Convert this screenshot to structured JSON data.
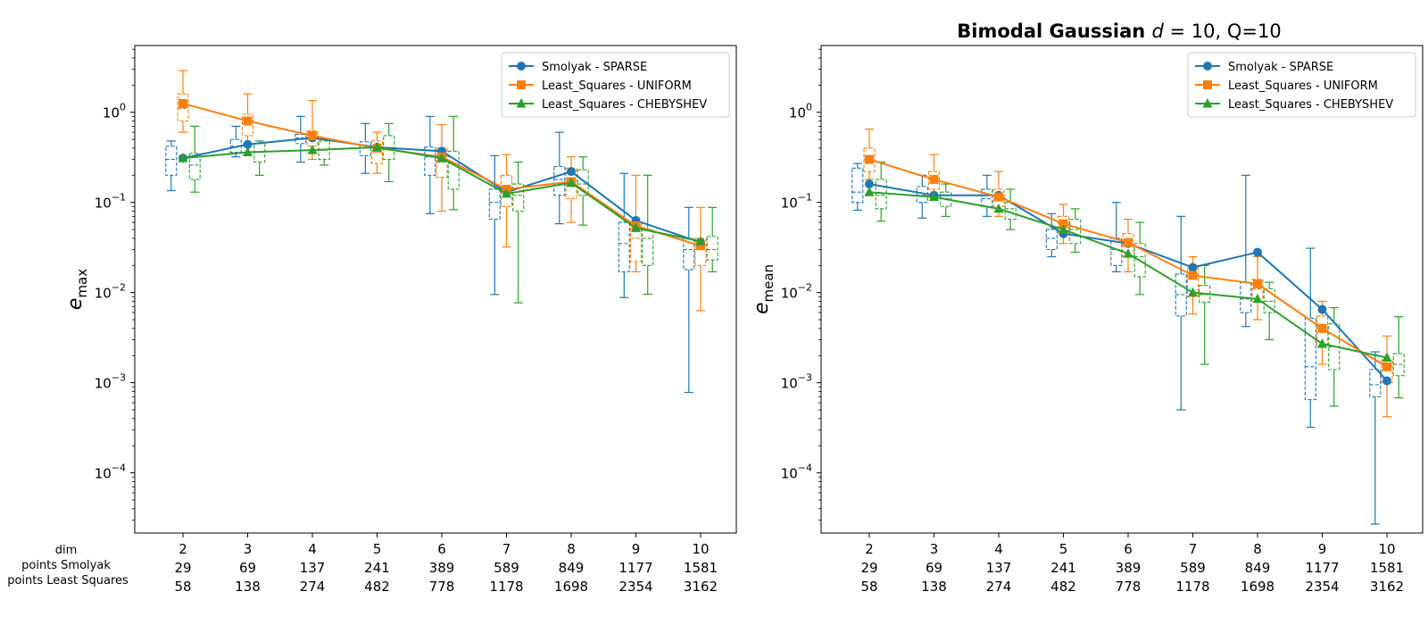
{
  "figure": {
    "title_parts": [
      "Bimodal Gaussian ",
      "d",
      " = 10, Q=10"
    ],
    "row_labels": [
      "dim",
      "points Smolyak",
      "points Least Squares"
    ],
    "x_dim": [
      2,
      3,
      4,
      5,
      6,
      7,
      8,
      9,
      10
    ],
    "x_points_smolyak": [
      29,
      69,
      137,
      241,
      389,
      589,
      849,
      1177,
      1581
    ],
    "x_points_least_squares": [
      58,
      138,
      274,
      482,
      778,
      1178,
      1698,
      2354,
      3162
    ],
    "colors": {
      "smolyak": "#1f77b4",
      "uniform": "#ff7f0e",
      "chebyshev": "#2ca02c"
    }
  },
  "chart_data": [
    {
      "type": "line",
      "scale": "log",
      "ylabel_base": "e",
      "ylabel_sub": "max",
      "ylim": [
        2.15e-05,
        5.5
      ],
      "y_ticks": [
        1,
        0.1,
        0.01,
        0.001,
        0.0001
      ],
      "y_tick_labels": [
        [
          "10",
          "0"
        ],
        [
          "10",
          "−1"
        ],
        [
          "10",
          "−2"
        ],
        [
          "10",
          "−3"
        ],
        [
          "10",
          "−4"
        ]
      ],
      "legend_position": "top-right",
      "x": [
        2,
        3,
        4,
        5,
        6,
        7,
        8,
        9,
        10
      ],
      "series": [
        {
          "name": "Smolyak - SPARSE",
          "marker": "circle",
          "color": "#1f77b4",
          "values": [
            0.31,
            0.44,
            0.52,
            0.41,
            0.37,
            0.13,
            0.22,
            0.063,
            0.036
          ],
          "box": [
            [
              0.135,
              0.2,
              0.3,
              0.42,
              0.48
            ],
            [
              0.32,
              0.36,
              0.42,
              0.5,
              0.7
            ],
            [
              0.28,
              0.45,
              0.52,
              0.57,
              0.9
            ],
            [
              0.21,
              0.33,
              0.4,
              0.47,
              0.75
            ],
            [
              0.075,
              0.2,
              0.32,
              0.41,
              0.9
            ],
            [
              0.0095,
              0.065,
              0.1,
              0.14,
              0.33
            ],
            [
              0.058,
              0.12,
              0.18,
              0.25,
              0.6
            ],
            [
              0.0088,
              0.017,
              0.035,
              0.06,
              0.21
            ],
            [
              0.00078,
              0.018,
              0.03,
              0.04,
              0.088
            ]
          ]
        },
        {
          "name": "Least_Squares - UNIFORM",
          "marker": "square",
          "color": "#ff7f0e",
          "values": [
            1.25,
            0.8,
            0.55,
            0.4,
            0.32,
            0.14,
            0.17,
            0.055,
            0.033
          ],
          "box": [
            [
              0.6,
              0.8,
              1.1,
              1.6,
              2.9
            ],
            [
              0.45,
              0.55,
              0.75,
              0.95,
              1.6
            ],
            [
              0.3,
              0.42,
              0.52,
              0.62,
              1.35
            ],
            [
              0.21,
              0.27,
              0.38,
              0.48,
              0.6
            ],
            [
              0.08,
              0.19,
              0.28,
              0.4,
              0.73
            ],
            [
              0.032,
              0.09,
              0.14,
              0.2,
              0.34
            ],
            [
              0.06,
              0.11,
              0.15,
              0.24,
              0.32
            ],
            [
              0.017,
              0.022,
              0.04,
              0.06,
              0.2
            ],
            [
              0.0063,
              0.02,
              0.03,
              0.04,
              0.088
            ]
          ]
        },
        {
          "name": "Least_Squares - CHEBYSHEV",
          "marker": "triangle",
          "color": "#2ca02c",
          "values": [
            0.31,
            0.36,
            0.38,
            0.41,
            0.31,
            0.125,
            0.165,
            0.052,
            0.037
          ],
          "box": [
            [
              0.13,
              0.18,
              0.26,
              0.35,
              0.7
            ],
            [
              0.2,
              0.28,
              0.36,
              0.45,
              0.48
            ],
            [
              0.26,
              0.3,
              0.38,
              0.48,
              0.5
            ],
            [
              0.17,
              0.3,
              0.4,
              0.55,
              0.75
            ],
            [
              0.083,
              0.14,
              0.27,
              0.37,
              0.9
            ],
            [
              0.0077,
              0.08,
              0.12,
              0.16,
              0.28
            ],
            [
              0.056,
              0.12,
              0.16,
              0.23,
              0.32
            ],
            [
              0.0096,
              0.02,
              0.04,
              0.05,
              0.2
            ],
            [
              0.017,
              0.023,
              0.03,
              0.042,
              0.088
            ]
          ]
        }
      ]
    },
    {
      "type": "line",
      "scale": "log",
      "ylabel_base": "e",
      "ylabel_sub": "mean",
      "ylim": [
        2.15e-05,
        5.5
      ],
      "y_ticks": [
        1,
        0.1,
        0.01,
        0.001,
        0.0001
      ],
      "y_tick_labels": [
        [
          "10",
          "0"
        ],
        [
          "10",
          "−1"
        ],
        [
          "10",
          "−2"
        ],
        [
          "10",
          "−3"
        ],
        [
          "10",
          "−4"
        ]
      ],
      "legend_position": "top-right",
      "x": [
        2,
        3,
        4,
        5,
        6,
        7,
        8,
        9,
        10
      ],
      "series": [
        {
          "name": "Smolyak - SPARSE",
          "marker": "circle",
          "color": "#1f77b4",
          "values": [
            0.16,
            0.12,
            0.12,
            0.045,
            0.035,
            0.019,
            0.028,
            0.0065,
            0.00105
          ],
          "box": [
            [
              0.082,
              0.1,
              0.13,
              0.24,
              0.27
            ],
            [
              0.067,
              0.1,
              0.12,
              0.15,
              0.2
            ],
            [
              0.07,
              0.09,
              0.11,
              0.14,
              0.2
            ],
            [
              0.025,
              0.03,
              0.04,
              0.05,
              0.075
            ],
            [
              0.017,
              0.02,
              0.03,
              0.04,
              0.1
            ],
            [
              0.0005,
              0.0055,
              0.0095,
              0.016,
              0.07
            ],
            [
              0.0042,
              0.006,
              0.0085,
              0.013,
              0.2
            ],
            [
              0.00032,
              0.00065,
              0.0015,
              0.0052,
              0.031
            ],
            [
              2.7e-05,
              0.0007,
              0.00095,
              0.0014,
              0.0022
            ]
          ]
        },
        {
          "name": "Least_Squares - UNIFORM",
          "marker": "square",
          "color": "#ff7f0e",
          "values": [
            0.3,
            0.18,
            0.115,
            0.058,
            0.036,
            0.0155,
            0.0125,
            0.004,
            0.0015
          ],
          "box": [
            [
              0.18,
              0.22,
              0.3,
              0.4,
              0.65
            ],
            [
              0.11,
              0.14,
              0.18,
              0.22,
              0.34
            ],
            [
              0.07,
              0.09,
              0.11,
              0.14,
              0.22
            ],
            [
              0.035,
              0.045,
              0.058,
              0.07,
              0.095
            ],
            [
              0.017,
              0.025,
              0.035,
              0.045,
              0.065
            ],
            [
              0.0058,
              0.009,
              0.014,
              0.019,
              0.025
            ],
            [
              0.005,
              0.008,
              0.011,
              0.014,
              0.025
            ],
            [
              0.0016,
              0.0025,
              0.004,
              0.0055,
              0.008
            ],
            [
              0.00042,
              0.001,
              0.0014,
              0.0018,
              0.0033
            ]
          ]
        },
        {
          "name": "Least_Squares - CHEBYSHEV",
          "marker": "triangle",
          "color": "#2ca02c",
          "values": [
            0.13,
            0.115,
            0.085,
            0.05,
            0.027,
            0.01,
            0.0085,
            0.0027,
            0.0019
          ],
          "box": [
            [
              0.062,
              0.085,
              0.12,
              0.18,
              0.28
            ],
            [
              0.07,
              0.09,
              0.11,
              0.13,
              0.16
            ],
            [
              0.05,
              0.065,
              0.085,
              0.1,
              0.14
            ],
            [
              0.028,
              0.035,
              0.05,
              0.065,
              0.085
            ],
            [
              0.0095,
              0.015,
              0.025,
              0.035,
              0.06
            ],
            [
              0.0016,
              0.0078,
              0.0095,
              0.012,
              0.02
            ],
            [
              0.003,
              0.006,
              0.008,
              0.011,
              0.013
            ],
            [
              0.00055,
              0.0014,
              0.0025,
              0.0045,
              0.0068
            ],
            [
              0.00068,
              0.0012,
              0.0016,
              0.0021,
              0.0054
            ]
          ]
        }
      ]
    }
  ]
}
